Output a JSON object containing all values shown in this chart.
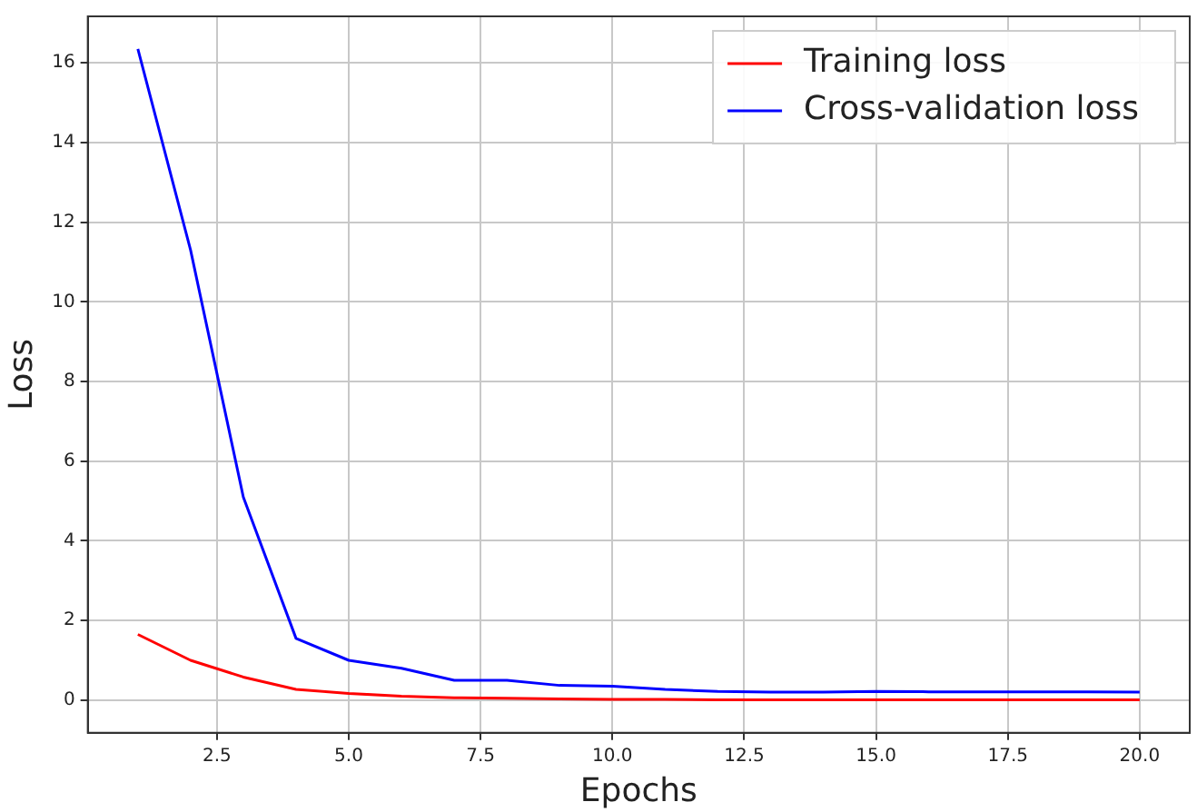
{
  "chart_data": {
    "type": "line",
    "xlabel": "Epochs",
    "ylabel": "Loss",
    "x": [
      1,
      2,
      3,
      4,
      5,
      6,
      7,
      8,
      9,
      10,
      11,
      12,
      13,
      14,
      15,
      16,
      17,
      18,
      19,
      20
    ],
    "series": [
      {
        "name": "Training loss",
        "color": "#ff0000",
        "values": [
          1.65,
          1.0,
          0.58,
          0.27,
          0.17,
          0.1,
          0.06,
          0.05,
          0.03,
          0.02,
          0.02,
          0.01,
          0.01,
          0.01,
          0.01,
          0.01,
          0.01,
          0.01,
          0.01,
          0.01
        ]
      },
      {
        "name": "Cross-validation loss",
        "color": "#0000ff",
        "values": [
          16.35,
          11.3,
          5.1,
          1.55,
          1.0,
          0.8,
          0.5,
          0.5,
          0.37,
          0.35,
          0.27,
          0.22,
          0.2,
          0.2,
          0.22,
          0.21,
          0.21,
          0.21,
          0.21,
          0.2
        ]
      }
    ],
    "xlim": [
      0.05,
      20.95
    ],
    "xticks": [
      {
        "value": 2.5,
        "label": "2.5"
      },
      {
        "value": 5,
        "label": "5.0"
      },
      {
        "value": 7.5,
        "label": "7.5"
      },
      {
        "value": 10,
        "label": "10.0"
      },
      {
        "value": 12.5,
        "label": "12.5"
      },
      {
        "value": 15,
        "label": "15.0"
      },
      {
        "value": 17.5,
        "label": "17.5"
      },
      {
        "value": 20,
        "label": "20.0"
      }
    ],
    "ylim": [
      -0.82,
      17.17
    ],
    "yticks": [
      0,
      2,
      4,
      6,
      8,
      10,
      12,
      14,
      16
    ],
    "grid": true,
    "legend": "top right",
    "marker": "none",
    "line_style": "solid"
  }
}
